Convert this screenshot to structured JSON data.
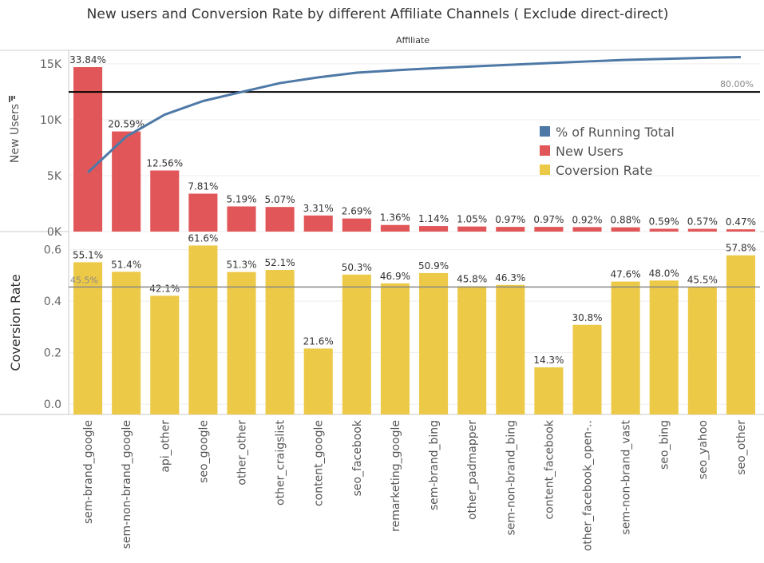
{
  "chart_data": [
    {
      "type": "bar",
      "title": "New users and Conversion Rate by different Affiliate Channels ( Exclude direct-direct)",
      "column_header": "Affiliate",
      "ylabel": "New Users",
      "ylim": [
        0,
        16200
      ],
      "yticks": [
        {
          "value": 0,
          "label": "0K"
        },
        {
          "value": 5000,
          "label": "5K"
        },
        {
          "value": 10000,
          "label": "10K"
        },
        {
          "value": 15000,
          "label": "15K"
        }
      ],
      "categories": [
        "sem-brand_google",
        "sem-non-brand_google",
        "api_other",
        "seo_google",
        "other_other",
        "other_craigslist",
        "content_google",
        "seo_facebook",
        "remarketing_google",
        "sem-brand_bing",
        "other_padmapper",
        "sem-non-brand_bing",
        "content_facebook",
        "other_facebook_open-..",
        "sem-non-brand_vast",
        "seo_bing",
        "seo_yahoo",
        "seo_other"
      ],
      "series": [
        {
          "name": "New Users",
          "color": "#e15759",
          "values": [
            14700,
            8950,
            5460,
            3390,
            2250,
            2200,
            1440,
            1170,
            590,
            495,
            455,
            420,
            420,
            400,
            382,
            256,
            248,
            204
          ],
          "labels": [
            "33.84%",
            "20.59%",
            "12.56%",
            "7.81%",
            "5.19%",
            "5.07%",
            "3.31%",
            "2.69%",
            "1.36%",
            "1.14%",
            "1.05%",
            "0.97%",
            "0.97%",
            "0.92%",
            "0.88%",
            "0.59%",
            "0.57%",
            "0.47%"
          ]
        },
        {
          "name": "% of Running Total",
          "color": "#4e79a7",
          "values": [
            33.84,
            54.43,
            66.99,
            74.8,
            79.99,
            85.06,
            88.37,
            91.06,
            92.42,
            93.56,
            94.61,
            95.58,
            96.55,
            97.47,
            98.35,
            98.94,
            99.51,
            99.98
          ]
        }
      ],
      "reference_line": {
        "value": 80,
        "label": "80.00%"
      },
      "legend": {
        "position": "right",
        "items": [
          {
            "label": "% of Running Total",
            "color": "#4e79a7"
          },
          {
            "label": "New Users",
            "color": "#e15759"
          },
          {
            "label": "Coversion Rate",
            "color": "#edc948"
          }
        ]
      }
    },
    {
      "type": "bar",
      "ylabel": "Coversion Rate",
      "ylim": [
        -0.04,
        0.67
      ],
      "yticks": [
        {
          "value": 0,
          "label": "0.0"
        },
        {
          "value": 0.2,
          "label": "0.2"
        },
        {
          "value": 0.4,
          "label": "0.4"
        },
        {
          "value": 0.6,
          "label": "0.6"
        }
      ],
      "series": [
        {
          "name": "Coversion Rate",
          "color": "#edc948",
          "values": [
            0.551,
            0.514,
            0.421,
            0.616,
            0.513,
            0.521,
            0.216,
            0.503,
            0.469,
            0.509,
            0.458,
            0.463,
            0.143,
            0.308,
            0.476,
            0.48,
            0.455,
            0.578
          ],
          "labels": [
            "55.1%",
            "51.4%",
            "42.1%",
            "61.6%",
            "51.3%",
            "52.1%",
            "21.6%",
            "50.3%",
            "46.9%",
            "50.9%",
            "45.8%",
            "46.3%",
            "14.3%",
            "30.8%",
            "47.6%",
            "48.0%",
            "45.5%",
            "57.8%"
          ]
        }
      ],
      "reference_line": {
        "value": 0.455,
        "label": "45.5%"
      }
    }
  ]
}
